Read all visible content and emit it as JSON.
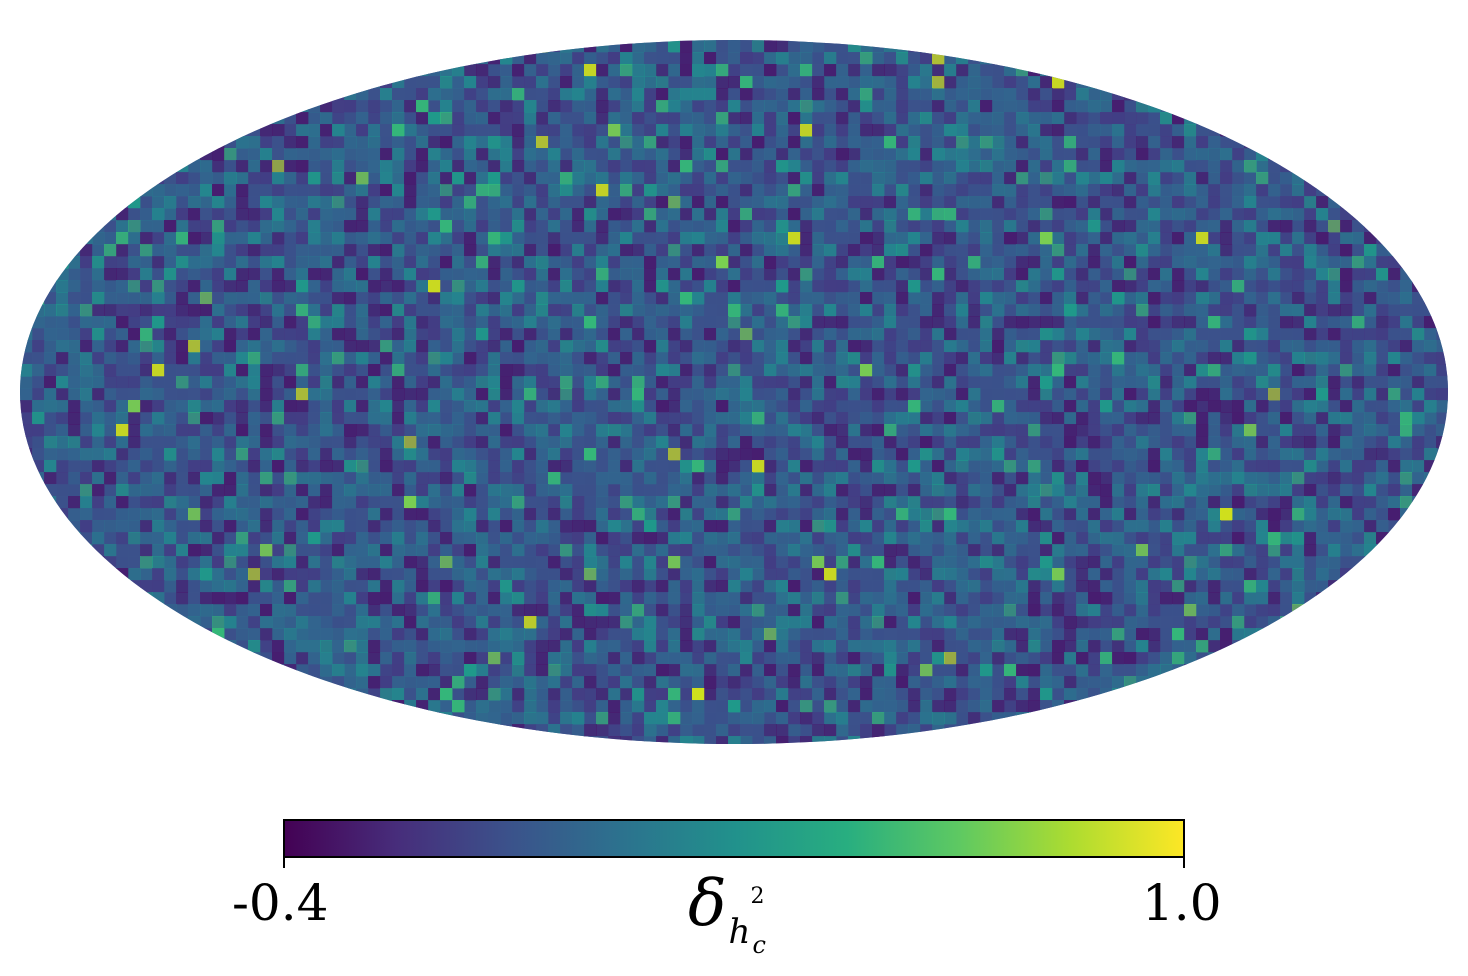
{
  "chart_data": {
    "type": "heatmap",
    "projection": "mollweide",
    "colormap": "viridis",
    "colormap_stops": [
      "#440154",
      "#3b528b",
      "#21918c",
      "#5ec962",
      "#fde725"
    ],
    "background_color": "#3b4f8a",
    "colorbar": {
      "orientation": "horizontal",
      "min": -0.4,
      "max": 1.0,
      "min_label": "-0.4",
      "max_label": "1.0",
      "label_symbol": "δ",
      "label_sub": "h",
      "label_sup": "2",
      "label_subsub": "c"
    },
    "grid": false,
    "legend": "none"
  }
}
